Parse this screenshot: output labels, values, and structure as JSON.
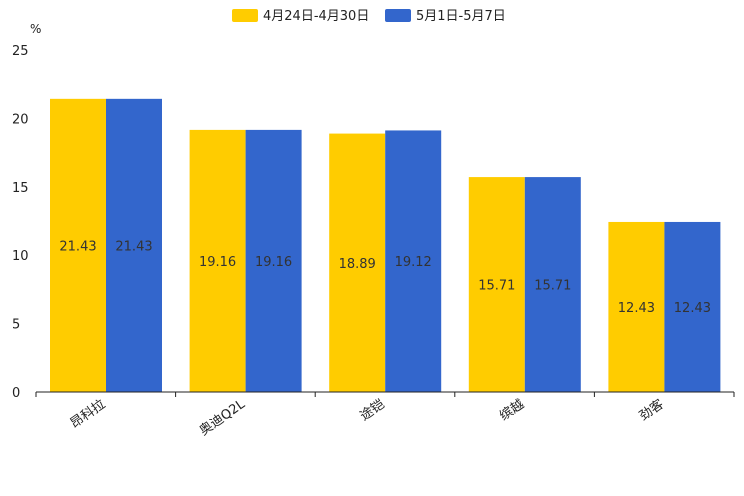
{
  "chart_data": {
    "type": "bar",
    "unit_label": "%",
    "categories": [
      "昂科拉",
      "奥迪Q2L",
      "途铠",
      "缤越",
      "劲客"
    ],
    "series": [
      {
        "name": "4月24日-4月30日",
        "color": "#FFCC00",
        "values": [
          21.43,
          19.16,
          18.89,
          15.71,
          12.43
        ]
      },
      {
        "name": "5月1日-5月7日",
        "color": "#3366CC",
        "values": [
          21.43,
          19.16,
          19.12,
          15.71,
          12.43
        ]
      }
    ],
    "ylim": [
      0,
      25
    ],
    "yticks": [
      0,
      5,
      10,
      15,
      20,
      25
    ],
    "legend_position": "top-center",
    "grid": false
  }
}
